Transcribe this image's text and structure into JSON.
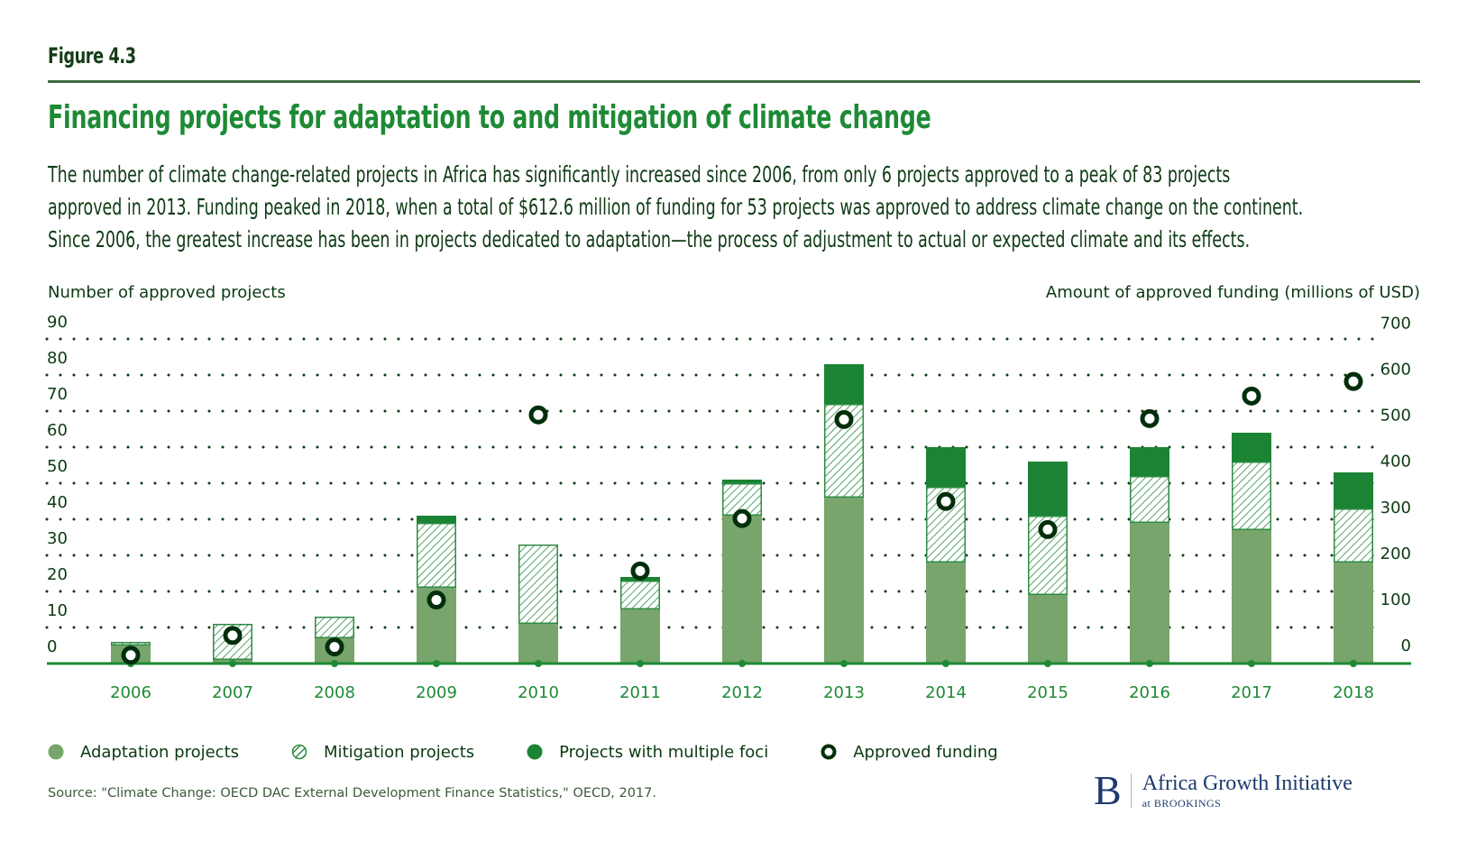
{
  "figure_label": "Figure 4.3",
  "title": "Financing projects for adaptation to and mitigation of climate change",
  "description_lines": [
    "The number of climate change-related projects in Africa has significantly increased since 2006, from only 6 projects approved to a peak of 83 projects",
    "approved in 2013. Funding peaked in 2018, when a total of $612.6 million of funding for 53 projects was approved to address climate change on the continent.",
    "Since 2006, the greatest increase has been in projects dedicated to adaptation—the process of adjustment to actual or expected climate and its effects."
  ],
  "colors": {
    "adaptation": "#77a56b",
    "mitigation_stroke": "#2e8b44",
    "multiple_foci": "#1b8434",
    "funding_marker": "#032e0b",
    "axis_line": "#1e8a35",
    "title": "#1e8a35",
    "logo": "#1d3a6e"
  },
  "chart_data": {
    "type": "bar",
    "subtype": "stacked-bar-with-dot-overlay",
    "categories": [
      "2006",
      "2007",
      "2008",
      "2009",
      "2010",
      "2011",
      "2012",
      "2013",
      "2014",
      "2015",
      "2016",
      "2017",
      "2018"
    ],
    "series": [
      {
        "name": "Adaptation projects",
        "axis": "left",
        "values": [
          5,
          1,
          7,
          21,
          11,
          15,
          41,
          46,
          28,
          19,
          39,
          37,
          28
        ]
      },
      {
        "name": "Mitigation projects",
        "axis": "left",
        "values": [
          1,
          10,
          6,
          18,
          22,
          8,
          9,
          26,
          21,
          22,
          13,
          19,
          15
        ]
      },
      {
        "name": "Projects with multiple foci",
        "axis": "left",
        "values": [
          0,
          0,
          0,
          2,
          0,
          1,
          1,
          11,
          11,
          15,
          8,
          8,
          10
        ]
      },
      {
        "name": "Approved funding",
        "axis": "right",
        "type": "scatter",
        "values": [
          18,
          61,
          36,
          138,
          540,
          201,
          315,
          530,
          352,
          291,
          532,
          581,
          612.6
        ]
      }
    ],
    "y_left": {
      "label": "Number of approved projects",
      "range": [
        0,
        90
      ],
      "ticks": [
        0,
        10,
        20,
        30,
        40,
        50,
        60,
        70,
        80,
        90
      ]
    },
    "y_right": {
      "label": "Amount of approved funding (millions of USD)",
      "range": [
        0,
        700
      ],
      "ticks": [
        0,
        100,
        200,
        300,
        400,
        500,
        600,
        700
      ]
    },
    "grid": "dotted horizontal",
    "legend": {
      "position": "bottom-left",
      "items": [
        "Adaptation projects",
        "Mitigation projects",
        "Projects with multiple foci",
        "Approved funding"
      ]
    }
  },
  "source": "Source: \"Climate Change: OECD DAC External Development Finance Statistics,\" OECD, 2017.",
  "logo": {
    "letter": "B",
    "name": "Africa Growth Initiative",
    "sub": "at BROOKINGS"
  }
}
